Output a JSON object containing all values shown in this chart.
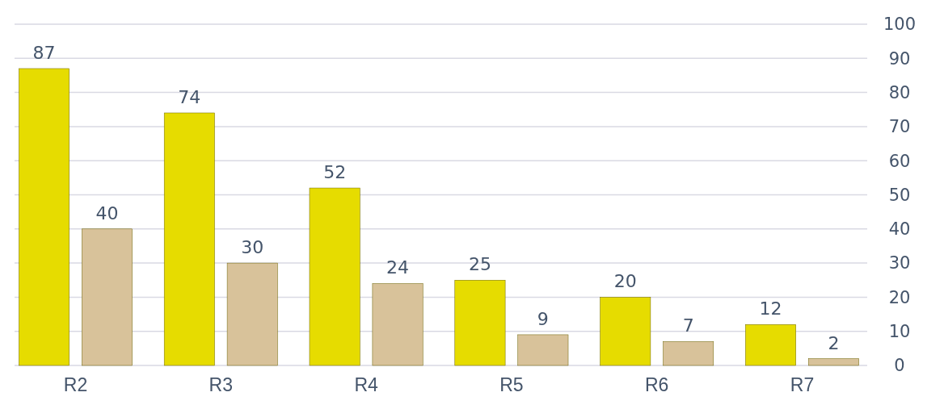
{
  "chart_data": {
    "type": "bar",
    "categories": [
      "R2",
      "R3",
      "R4",
      "R5",
      "R6",
      "R7"
    ],
    "series": [
      {
        "color": "#e6dc00",
        "values": [
          87,
          74,
          52,
          25,
          20,
          12
        ]
      },
      {
        "color": "#d8c29a",
        "values": [
          40,
          30,
          24,
          9,
          7,
          2
        ]
      }
    ],
    "ylim": [
      0,
      100
    ],
    "yticks": [
      0,
      10,
      20,
      30,
      40,
      50,
      60,
      70,
      80,
      90,
      100
    ],
    "grid": "y",
    "data_labels": true
  }
}
